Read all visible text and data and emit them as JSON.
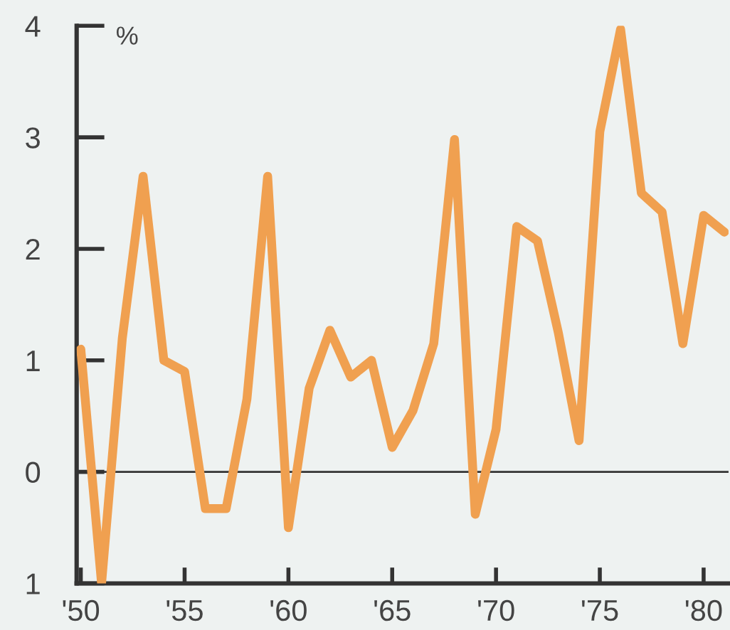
{
  "chart_data": {
    "type": "line",
    "ylabel": "%",
    "x": [
      1950,
      1951,
      1952,
      1953,
      1954,
      1955,
      1956,
      1957,
      1958,
      1959,
      1960,
      1961,
      1962,
      1963,
      1964,
      1965,
      1966,
      1967,
      1968,
      1969,
      1970,
      1971,
      1972,
      1973,
      1974,
      1975,
      1976,
      1977,
      1978,
      1979,
      1980,
      1981
    ],
    "series": [
      {
        "color": "#f0a050",
        "values": [
          1.1,
          -1.0,
          1.2,
          2.65,
          1.0,
          0.9,
          -0.33,
          -0.33,
          0.65,
          2.65,
          -0.5,
          0.75,
          1.27,
          0.85,
          1.0,
          0.22,
          0.55,
          1.15,
          2.98,
          -0.38,
          0.38,
          2.2,
          2.07,
          1.25,
          0.28,
          3.05,
          3.97,
          2.5,
          2.33,
          1.15,
          2.3,
          2.15
        ]
      }
    ],
    "xlim": [
      1949.8,
      1981.2
    ],
    "ylim": [
      -1,
      4
    ],
    "xticks": [
      {
        "value": 1950,
        "label": "'50"
      },
      {
        "value": 1955,
        "label": "'55"
      },
      {
        "value": 1960,
        "label": "'60"
      },
      {
        "value": 1965,
        "label": "'65"
      },
      {
        "value": 1970,
        "label": "'70"
      },
      {
        "value": 1975,
        "label": "'75"
      },
      {
        "value": 1980,
        "label": "'80"
      }
    ],
    "yticks": [
      {
        "value": -1,
        "label": "1"
      },
      0,
      1,
      2,
      3,
      4
    ],
    "ref_lines": [
      {
        "axis": "y",
        "value": 0,
        "color": "#333333"
      }
    ],
    "grid": false,
    "legend": false,
    "marker": "none",
    "line_style": "solid"
  }
}
